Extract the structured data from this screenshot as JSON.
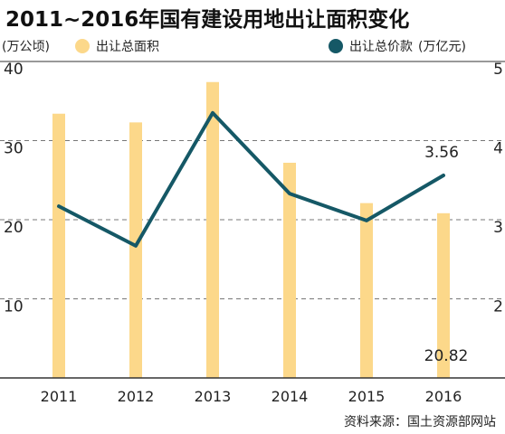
{
  "title": "2011~2016年国有建设用地出让面积变化",
  "left_unit": "(万公顷)",
  "right_unit": "(万亿元)",
  "source": "资料来源：国土资源部网站",
  "colors": {
    "bar": "#fcd88a",
    "line": "#155866",
    "grid": "#777777",
    "axis": "#333333",
    "text": "#222222"
  },
  "chart_data": {
    "type": "bar+line",
    "categories": [
      "2011",
      "2012",
      "2013",
      "2014",
      "2015",
      "2016"
    ],
    "series": [
      {
        "name": "出让总面积",
        "type": "bar",
        "axis": "left",
        "values": [
          33.4,
          32.3,
          37.4,
          27.2,
          22.1,
          20.82
        ]
      },
      {
        "name": "出让总价款",
        "type": "line",
        "axis": "right",
        "values": [
          3.17,
          2.67,
          4.35,
          3.33,
          2.99,
          3.56
        ]
      }
    ],
    "left_axis": {
      "ylim": [
        0,
        40
      ],
      "ticks": [
        "10",
        "20",
        "30",
        "40"
      ],
      "tick_values": [
        10,
        20,
        30,
        40
      ]
    },
    "right_axis": {
      "ylim": [
        1,
        5
      ],
      "ticks": [
        "2",
        "3",
        "4",
        "5"
      ],
      "tick_values": [
        2,
        3,
        4,
        5
      ]
    },
    "annotations": [
      {
        "text": "3.56",
        "series": "出让总价款",
        "category": "2016"
      },
      {
        "text": "20.82",
        "series": "出让总面积",
        "category": "2016"
      }
    ],
    "grid": true,
    "legend": "top"
  }
}
